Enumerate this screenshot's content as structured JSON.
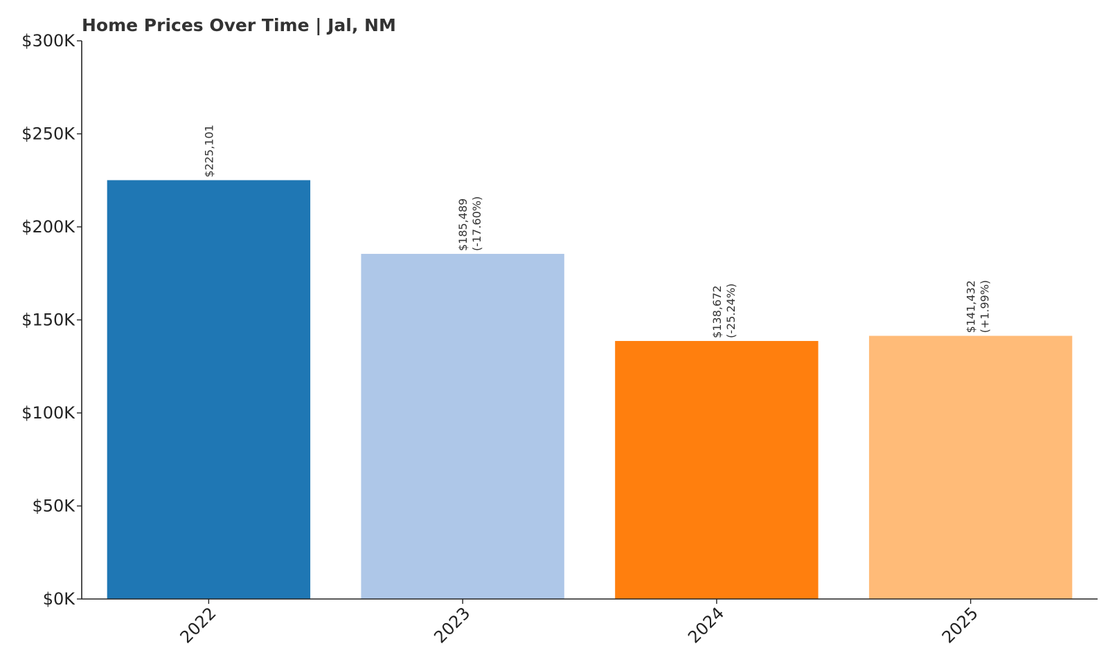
{
  "chart_data": {
    "type": "bar",
    "title": "Home Prices Over Time | Jal, NM",
    "xlabel": "",
    "ylabel": "",
    "categories": [
      "2022",
      "2023",
      "2024",
      "2025"
    ],
    "values": [
      225101,
      185489,
      138672,
      141432
    ],
    "value_labels": [
      "$225,101",
      "$185,489",
      "$138,672",
      "$141,432"
    ],
    "change_labels": [
      "",
      "(-17.60%)",
      "(-25.24%)",
      "(+1.99%)"
    ],
    "bar_colors": [
      "#1f77b4",
      "#aec7e8",
      "#ff7f0e",
      "#ffbb78"
    ],
    "ylim": [
      0,
      300000
    ],
    "yticks": [
      0,
      50000,
      100000,
      150000,
      200000,
      250000,
      300000
    ],
    "ytick_labels": [
      "$0K",
      "$50K",
      "$100K",
      "$150K",
      "$200K",
      "$250K",
      "$300K"
    ],
    "grid": false,
    "legend": "none"
  }
}
